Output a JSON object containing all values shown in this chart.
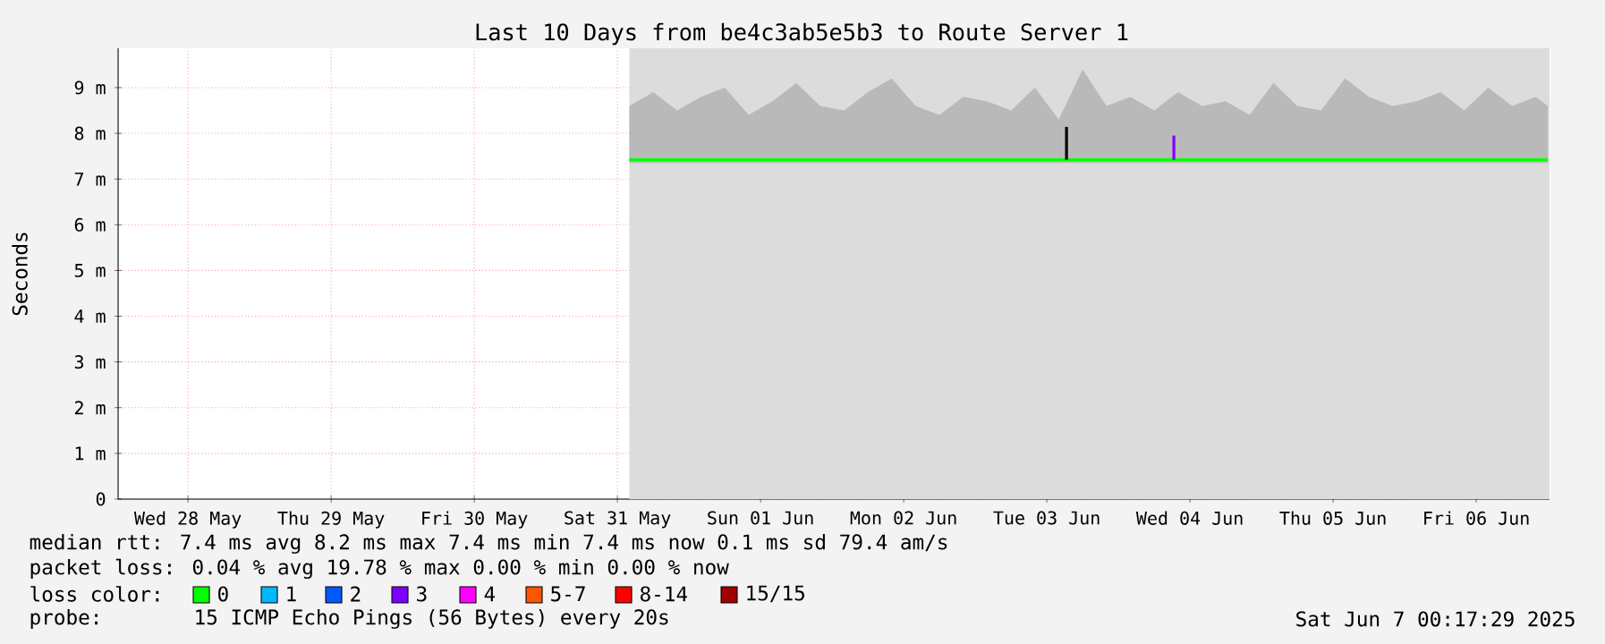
{
  "chart_data": {
    "type": "line",
    "title": "Last 10 Days from be4c3ab5e5b3 to Route Server 1",
    "ylabel": "Seconds",
    "xlim": [
      "2025-05-28T00:17",
      "2025-06-07T00:17"
    ],
    "xticks": [
      {
        "value": "2025-05-28T12:00",
        "label": "Wed 28 May"
      },
      {
        "value": "2025-05-29T12:00",
        "label": "Thu 29 May"
      },
      {
        "value": "2025-05-30T12:00",
        "label": "Fri 30 May"
      },
      {
        "value": "2025-05-31T12:00",
        "label": "Sat 31 May"
      },
      {
        "value": "2025-06-01T12:00",
        "label": "Sun 01 Jun"
      },
      {
        "value": "2025-06-02T12:00",
        "label": "Mon 02 Jun"
      },
      {
        "value": "2025-06-03T12:00",
        "label": "Tue 03 Jun"
      },
      {
        "value": "2025-06-04T12:00",
        "label": "Wed 04 Jun"
      },
      {
        "value": "2025-06-05T12:00",
        "label": "Thu 05 Jun"
      },
      {
        "value": "2025-06-06T12:00",
        "label": "Fri 06 Jun"
      }
    ],
    "ylim": [
      0,
      9.86
    ],
    "yticks": [
      0,
      {
        "value": 1,
        "label": "1 m"
      },
      {
        "value": 2,
        "label": "2 m"
      },
      {
        "value": 3,
        "label": "3 m"
      },
      {
        "value": 4,
        "label": "4 m"
      },
      {
        "value": 5,
        "label": "5 m"
      },
      {
        "value": 6,
        "label": "6 m"
      },
      {
        "value": 7,
        "label": "7 m"
      },
      {
        "value": 8,
        "label": "8 m"
      },
      {
        "value": 9,
        "label": "9 m"
      }
    ],
    "grid": true,
    "bands": [
      {
        "axis": "x",
        "from": "2025-05-31T14:00",
        "to": "2025-06-07T00:17",
        "color": "#dcdcdc"
      }
    ],
    "series": [
      {
        "color": "#00ff00",
        "x": [
          "2025-05-31T14:00",
          "2025-05-31T18:00",
          "2025-05-31T22:00",
          "2025-06-01T02:00",
          "2025-06-01T06:00",
          "2025-06-01T10:00",
          "2025-06-01T14:00",
          "2025-06-01T18:00",
          "2025-06-01T22:00",
          "2025-06-02T02:00",
          "2025-06-02T06:00",
          "2025-06-02T10:00",
          "2025-06-02T14:00",
          "2025-06-02T18:00",
          "2025-06-02T22:00",
          "2025-06-03T02:00",
          "2025-06-03T06:00",
          "2025-06-03T10:00",
          "2025-06-03T14:00",
          "2025-06-03T18:00",
          "2025-06-03T22:00",
          "2025-06-04T02:00",
          "2025-06-04T06:00",
          "2025-06-04T10:00",
          "2025-06-04T14:00",
          "2025-06-04T18:00",
          "2025-06-04T22:00",
          "2025-06-05T02:00",
          "2025-06-05T06:00",
          "2025-06-05T10:00",
          "2025-06-05T14:00",
          "2025-06-05T18:00",
          "2025-06-05T22:00",
          "2025-06-06T02:00",
          "2025-06-06T06:00",
          "2025-06-06T10:00",
          "2025-06-06T14:00",
          "2025-06-06T18:00",
          "2025-06-06T22:00",
          "2025-06-07T00:00"
        ],
        "values": [
          7.42,
          7.42,
          7.42,
          7.42,
          7.42,
          7.42,
          7.42,
          7.42,
          7.42,
          7.42,
          7.42,
          7.42,
          7.42,
          7.42,
          7.42,
          7.42,
          7.42,
          7.42,
          7.42,
          7.42,
          7.42,
          7.42,
          7.42,
          7.42,
          7.42,
          7.42,
          7.42,
          7.42,
          7.42,
          7.42,
          7.42,
          7.42,
          7.42,
          7.42,
          7.42,
          7.42,
          7.42,
          7.42,
          7.42,
          7.42
        ],
        "lower": [
          7.35,
          7.35,
          7.35,
          7.35,
          7.35,
          7.35,
          7.35,
          7.35,
          7.35,
          7.35,
          7.35,
          7.35,
          7.35,
          7.35,
          7.35,
          7.35,
          7.35,
          7.35,
          7.35,
          7.35,
          7.35,
          7.35,
          7.35,
          7.35,
          7.35,
          7.35,
          7.35,
          7.35,
          7.35,
          7.35,
          7.35,
          7.35,
          7.35,
          7.35,
          7.35,
          7.35,
          7.35,
          7.35,
          7.35,
          7.35
        ],
        "upper": [
          8.6,
          8.9,
          8.5,
          8.8,
          9.0,
          8.4,
          8.7,
          9.1,
          8.6,
          8.5,
          8.9,
          9.2,
          8.6,
          8.4,
          8.8,
          8.7,
          8.5,
          9.0,
          8.3,
          9.4,
          8.6,
          8.8,
          8.5,
          8.9,
          8.6,
          8.7,
          8.4,
          9.1,
          8.6,
          8.5,
          9.2,
          8.8,
          8.6,
          8.7,
          8.9,
          8.5,
          9.0,
          8.6,
          8.8,
          8.6
        ]
      },
      {
        "color": "#000000",
        "x": [
          "2025-06-03T15:18",
          "2025-06-03T15:18"
        ],
        "values": [
          7.42,
          8.14
        ]
      },
      {
        "color": "#7e00ff",
        "x": [
          "2025-06-04T09:18",
          "2025-06-04T09:18"
        ],
        "values": [
          7.42,
          7.95
        ]
      }
    ],
    "annotations": [
      "median rtt:  7.4 ms avg  8.2 ms max  7.4 ms min  7.4 ms now  0.1 ms sd  79.4   am/s",
      "packet loss: 0.04 % avg  19.78 % max  0.00 % min  0.00 % now",
      "loss color:",
      "0",
      "1",
      "2",
      "3",
      "4",
      "5-7",
      "8-14",
      "15/15",
      "probe:",
      "15 ICMP Echo Pings (56 Bytes) every 20s",
      "Sat Jun  7 00:17:29 2025"
    ]
  }
}
